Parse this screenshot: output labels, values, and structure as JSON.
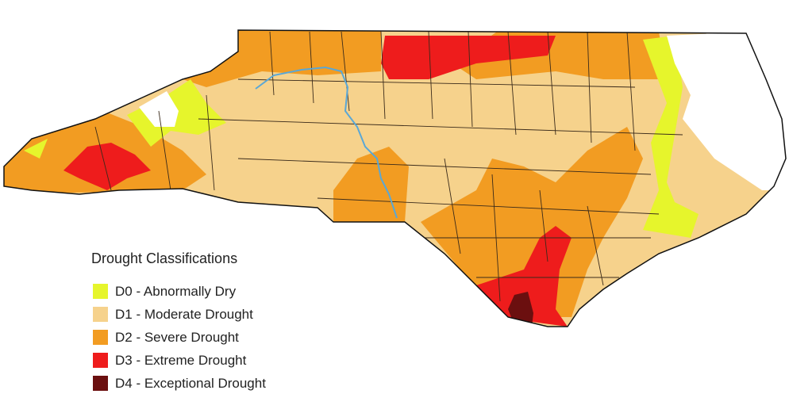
{
  "legend": {
    "title": "Drought Classifications",
    "items": [
      {
        "label": "D0 - Abnormally Dry",
        "color": "#e6f52c"
      },
      {
        "label": "D1 - Moderate Drought",
        "color": "#f6d28c"
      },
      {
        "label": "D2 - Severe Drought",
        "color": "#f29c22"
      },
      {
        "label": "D3 - Extreme Drought",
        "color": "#ee1c1c"
      },
      {
        "label": "D4 - Exceptional Drought",
        "color": "#6b0f0f"
      }
    ]
  }
}
